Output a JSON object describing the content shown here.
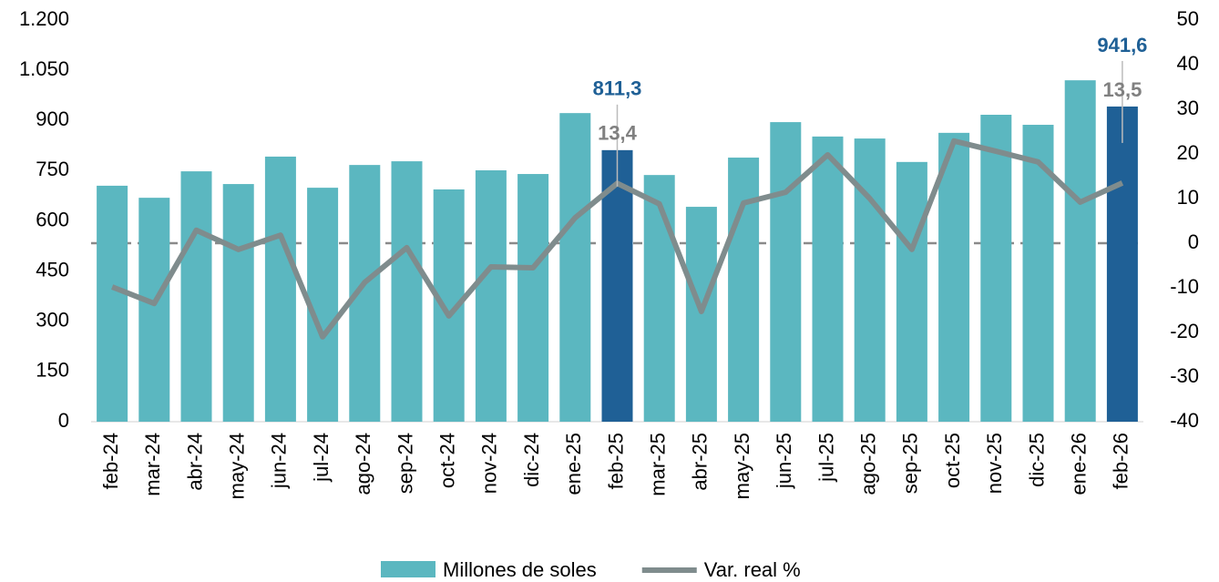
{
  "chart_data": {
    "type": "bar_line",
    "categories": [
      "feb-24",
      "mar-24",
      "abr-24",
      "may-24",
      "jun-24",
      "jul-24",
      "ago-24",
      "sep-24",
      "oct-24",
      "nov-24",
      "dic-24",
      "ene-25",
      "feb-25",
      "mar-25",
      "abr-25",
      "may-25",
      "jun-25",
      "jul-25",
      "ago-25",
      "sep-25",
      "oct-25",
      "nov-25",
      "dic-25",
      "ene-26",
      "feb-26"
    ],
    "series": [
      {
        "name": "Millones de soles",
        "type": "bar",
        "color": "#5bb7c0",
        "bar_colors": [
          "#5bb7c0",
          "#5bb7c0",
          "#5bb7c0",
          "#5bb7c0",
          "#5bb7c0",
          "#5bb7c0",
          "#5bb7c0",
          "#5bb7c0",
          "#5bb7c0",
          "#5bb7c0",
          "#5bb7c0",
          "#5bb7c0",
          "#1f6096",
          "#5bb7c0",
          "#5bb7c0",
          "#5bb7c0",
          "#5bb7c0",
          "#5bb7c0",
          "#5bb7c0",
          "#5bb7c0",
          "#5bb7c0",
          "#5bb7c0",
          "#5bb7c0",
          "#5bb7c0",
          "#1f6096"
        ],
        "values": [
          705,
          669,
          748,
          710,
          792,
          699,
          767,
          778,
          694,
          751,
          740,
          922,
          811.3,
          737,
          642,
          789,
          895,
          852,
          846,
          776,
          863,
          917,
          887,
          1020,
          941.6
        ],
        "value_labels": [
          null,
          null,
          null,
          null,
          null,
          null,
          null,
          null,
          null,
          null,
          null,
          null,
          "811,3",
          null,
          null,
          null,
          null,
          null,
          null,
          null,
          null,
          null,
          null,
          null,
          "941,6"
        ]
      },
      {
        "name": "Var. real %",
        "type": "line",
        "axis": "y2",
        "color": "#7f8c8d",
        "values": [
          -9.8,
          -13.5,
          2.9,
          -1.4,
          1.8,
          -21,
          -8.8,
          -1,
          -16.3,
          -5.3,
          -5.5,
          5.7,
          13.4,
          8.8,
          -15.3,
          9,
          11.4,
          19.8,
          10,
          -1.4,
          22.9,
          20.6,
          18.2,
          9.2,
          13.5
        ],
        "value_labels": [
          null,
          null,
          null,
          null,
          null,
          null,
          null,
          null,
          null,
          null,
          null,
          null,
          "13,4",
          null,
          null,
          null,
          null,
          null,
          null,
          null,
          null,
          null,
          null,
          null,
          "13,5"
        ]
      }
    ],
    "ylim": [
      0,
      1200
    ],
    "yticks": [
      0,
      150,
      300,
      450,
      600,
      750,
      900,
      {
        "value": 1050,
        "label": "1.050"
      },
      {
        "value": 1200,
        "label": "1.200"
      }
    ],
    "y2lim": [
      -40,
      50
    ],
    "y2ticks": [
      -40,
      -30,
      -20,
      -10,
      0,
      10,
      20,
      30,
      40,
      50
    ],
    "zero_line": true,
    "legend": "bottom"
  }
}
